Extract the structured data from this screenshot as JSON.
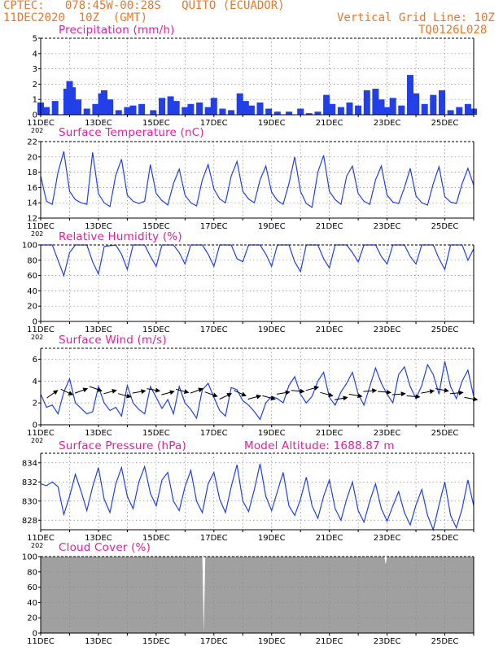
{
  "header": {
    "line1": "CPTEC:   078:45W-00:28S   QUITO (ECUADOR)",
    "line2": "11DEC2020  10Z  (GMT)",
    "grid_note": "Vertical Grid Line: 10Z",
    "code": "TQ0126L028"
  },
  "colors": {
    "header": "#e8792b",
    "title": "#e0209a",
    "series": "#2340e8",
    "cloud": "#a0a0a0",
    "arrow": "#000000"
  },
  "x_ticks": [
    "11DEC",
    "13DEC",
    "15DEC",
    "17DEC",
    "19DEC",
    "21DEC",
    "23DEC",
    "25DEC"
  ],
  "year_label": "202",
  "panels": {
    "precip": {
      "title": "Precipitation (mm/h)"
    },
    "temp": {
      "title": "Surface Temperature (nC)"
    },
    "rh": {
      "title": "Relative Humidity (%)"
    },
    "wind": {
      "title": "Surface Wind (m/s)"
    },
    "pressure": {
      "title": "Surface Pressure (hPa)",
      "altitude": "Model Altitude: 1688.87 m"
    },
    "cloud": {
      "title": "Cloud Cover (%)"
    }
  },
  "chart_data": [
    {
      "type": "bar",
      "title": "Precipitation (mm/h)",
      "x_range_days": [
        11,
        26
      ],
      "ylim": [
        0,
        5
      ],
      "yticks": [
        0,
        1,
        2,
        3,
        4,
        5
      ],
      "x": [
        11.0,
        11.2,
        11.5,
        11.9,
        12.0,
        12.1,
        12.3,
        12.6,
        12.9,
        13.1,
        13.2,
        13.4,
        13.7,
        14.0,
        14.2,
        14.5,
        14.9,
        15.2,
        15.5,
        15.7,
        16.0,
        16.2,
        16.5,
        16.8,
        17.0,
        17.3,
        17.6,
        17.9,
        18.1,
        18.3,
        18.6,
        18.9,
        19.2,
        19.6,
        20.0,
        20.3,
        20.6,
        20.9,
        21.1,
        21.4,
        21.7,
        22.0,
        22.3,
        22.6,
        22.8,
        23.0,
        23.2,
        23.5,
        23.8,
        24.0,
        24.3,
        24.6,
        24.9,
        25.2,
        25.5,
        25.8,
        26.0
      ],
      "values": [
        0.8,
        0.5,
        0.9,
        1.7,
        2.2,
        1.8,
        1.0,
        0.4,
        0.7,
        1.4,
        1.6,
        1.0,
        0.3,
        0.5,
        0.6,
        0.7,
        0.3,
        1.1,
        1.2,
        0.9,
        0.5,
        0.7,
        0.8,
        0.5,
        1.1,
        0.4,
        0.3,
        1.4,
        0.9,
        0.6,
        0.8,
        0.4,
        0.2,
        0.2,
        0.4,
        0.1,
        0.2,
        1.3,
        0.7,
        0.5,
        0.8,
        0.6,
        1.6,
        1.7,
        1.0,
        0.5,
        1.1,
        0.6,
        2.6,
        1.4,
        0.7,
        1.3,
        1.6,
        0.3,
        0.5,
        0.7,
        0.4
      ],
      "ylabel": ""
    },
    {
      "type": "line",
      "title": "Surface Temperature (nC)",
      "ylim": [
        12,
        22
      ],
      "yticks": [
        12,
        14,
        16,
        18,
        20,
        22
      ],
      "x": [
        11.0,
        11.2,
        11.4,
        11.6,
        11.8,
        12.0,
        12.2,
        12.4,
        12.6,
        12.8,
        13.0,
        13.2,
        13.4,
        13.6,
        13.8,
        14.0,
        14.2,
        14.4,
        14.6,
        14.8,
        15.0,
        15.2,
        15.4,
        15.6,
        15.8,
        16.0,
        16.2,
        16.4,
        16.6,
        16.8,
        17.0,
        17.2,
        17.4,
        17.6,
        17.8,
        18.0,
        18.2,
        18.4,
        18.6,
        18.8,
        19.0,
        19.2,
        19.4,
        19.6,
        19.8,
        20.0,
        20.2,
        20.4,
        20.6,
        20.8,
        21.0,
        21.2,
        21.4,
        21.6,
        21.8,
        22.0,
        22.2,
        22.4,
        22.6,
        22.8,
        23.0,
        23.2,
        23.4,
        23.6,
        23.8,
        24.0,
        24.2,
        24.4,
        24.6,
        24.8,
        25.0,
        25.2,
        25.4,
        25.6,
        25.8,
        26.0
      ],
      "values": [
        17.5,
        14.2,
        13.8,
        18.0,
        20.7,
        15.5,
        14.4,
        14.0,
        13.8,
        20.6,
        15.2,
        14.0,
        13.5,
        17.6,
        19.7,
        15.0,
        14.2,
        13.9,
        14.2,
        19.0,
        15.2,
        14.3,
        13.7,
        16.5,
        18.4,
        15.0,
        14.0,
        13.6,
        17.0,
        19.0,
        15.8,
        14.5,
        14.0,
        17.5,
        19.4,
        15.5,
        14.5,
        14.0,
        17.0,
        18.8,
        15.4,
        14.3,
        13.8,
        16.5,
        20.0,
        15.5,
        13.9,
        13.4,
        18.0,
        20.2,
        15.5,
        14.4,
        13.8,
        17.5,
        18.8,
        15.2,
        14.2,
        13.8,
        17.0,
        18.8,
        15.0,
        14.1,
        13.9,
        16.0,
        18.5,
        14.9,
        14.0,
        13.7,
        16.5,
        18.7,
        14.8,
        14.1,
        13.9,
        16.5,
        18.5,
        16.3
      ]
    },
    {
      "type": "line",
      "title": "Relative Humidity (%)",
      "ylim": [
        0,
        100
      ],
      "yticks": [
        0,
        20,
        40,
        60,
        80,
        100
      ],
      "x": [
        11.0,
        11.4,
        11.6,
        11.8,
        12.0,
        12.2,
        12.6,
        12.8,
        13.0,
        13.2,
        13.6,
        13.8,
        14.0,
        14.2,
        14.6,
        14.8,
        15.0,
        15.2,
        15.6,
        15.8,
        16.0,
        16.2,
        16.6,
        16.8,
        17.0,
        17.2,
        17.6,
        17.8,
        18.0,
        18.2,
        18.6,
        18.8,
        19.0,
        19.2,
        19.6,
        19.8,
        20.0,
        20.2,
        20.6,
        20.8,
        21.0,
        21.2,
        21.6,
        21.8,
        22.0,
        22.2,
        22.6,
        22.8,
        23.0,
        23.2,
        23.6,
        23.8,
        24.0,
        24.2,
        24.6,
        24.8,
        25.0,
        25.2,
        25.6,
        25.8,
        26.0
      ],
      "values": [
        100,
        100,
        80,
        60,
        90,
        100,
        100,
        78,
        62,
        98,
        100,
        88,
        68,
        100,
        100,
        85,
        72,
        100,
        100,
        90,
        75,
        100,
        100,
        88,
        72,
        100,
        100,
        82,
        78,
        100,
        100,
        88,
        72,
        100,
        100,
        78,
        65,
        100,
        100,
        82,
        70,
        100,
        100,
        90,
        78,
        100,
        100,
        85,
        75,
        100,
        100,
        85,
        75,
        100,
        100,
        82,
        68,
        100,
        100,
        80,
        95
      ]
    },
    {
      "type": "line",
      "title": "Surface Wind (m/s)",
      "ylim": [
        0,
        7
      ],
      "yticks": [
        0,
        2,
        4,
        6
      ],
      "x": [
        11.0,
        11.2,
        11.4,
        11.6,
        11.8,
        12.0,
        12.2,
        12.4,
        12.6,
        12.8,
        13.0,
        13.2,
        13.4,
        13.6,
        13.8,
        14.0,
        14.2,
        14.4,
        14.6,
        14.8,
        15.0,
        15.2,
        15.4,
        15.6,
        15.8,
        16.0,
        16.2,
        16.4,
        16.6,
        16.8,
        17.0,
        17.2,
        17.4,
        17.6,
        17.8,
        18.0,
        18.2,
        18.4,
        18.6,
        18.8,
        19.0,
        19.2,
        19.4,
        19.6,
        19.8,
        20.0,
        20.2,
        20.4,
        20.6,
        20.8,
        21.0,
        21.2,
        21.4,
        21.6,
        21.8,
        22.0,
        22.2,
        22.4,
        22.6,
        22.8,
        23.0,
        23.2,
        23.4,
        23.6,
        23.8,
        24.0,
        24.2,
        24.4,
        24.6,
        24.8,
        25.0,
        25.2,
        25.4,
        25.6,
        25.8,
        26.0
      ],
      "values": [
        2.8,
        1.6,
        1.8,
        1.0,
        3.0,
        4.2,
        2.0,
        1.5,
        1.0,
        1.2,
        3.5,
        2.0,
        1.3,
        1.6,
        0.8,
        3.6,
        2.0,
        1.4,
        1.0,
        3.5,
        2.5,
        1.5,
        2.3,
        1.0,
        3.5,
        2.0,
        1.4,
        0.6,
        3.2,
        3.8,
        2.5,
        1.3,
        0.8,
        3.4,
        3.2,
        2.2,
        1.8,
        1.2,
        0.5,
        2.0,
        2.6,
        2.4,
        2.0,
        3.6,
        4.4,
        2.8,
        2.0,
        2.6,
        4.0,
        4.8,
        2.5,
        1.8,
        3.0,
        3.8,
        4.8,
        2.8,
        1.8,
        3.5,
        5.2,
        3.8,
        2.8,
        2.0,
        4.6,
        5.3,
        3.5,
        2.4,
        3.6,
        5.5,
        4.6,
        2.8,
        5.8,
        3.5,
        2.4,
        4.0,
        5.0,
        2.6
      ],
      "arrows_x": [
        11.4,
        11.9,
        12.4,
        12.9,
        13.4,
        13.9,
        14.4,
        14.9,
        15.4,
        15.9,
        16.4,
        16.9,
        17.4,
        17.9,
        18.4,
        18.9,
        19.4,
        19.9,
        20.4,
        20.9,
        21.4,
        21.9,
        22.4,
        22.9,
        23.4,
        23.9,
        24.4,
        24.9,
        25.4,
        25.9
      ],
      "arrows_dir_deg": [
        35,
        -25,
        20,
        -20,
        15,
        -15,
        10,
        -10,
        15,
        -15,
        20,
        -20,
        25,
        -25,
        15,
        -15,
        10,
        -5,
        15,
        -15,
        10,
        -10,
        5,
        -5,
        5,
        -5,
        10,
        -10,
        5,
        -10
      ],
      "arrows_speed": [
        2.8,
        3.0,
        3.1,
        3.3,
        3.0,
        2.7,
        3.0,
        3.2,
        2.9,
        3.1,
        3.1,
        2.8,
        2.6,
        2.9,
        2.5,
        2.5,
        2.9,
        3.1,
        3.3,
        2.8,
        2.4,
        2.7,
        3.1,
        3.0,
        2.8,
        2.6,
        3.0,
        3.2,
        2.9,
        2.4
      ]
    },
    {
      "type": "line",
      "title": "Surface Pressure (hPa)",
      "ylim": [
        827,
        835
      ],
      "yticks": [
        828,
        830,
        832,
        834
      ],
      "x": [
        11.0,
        11.2,
        11.4,
        11.6,
        11.8,
        12.0,
        12.2,
        12.4,
        12.6,
        12.8,
        13.0,
        13.2,
        13.4,
        13.6,
        13.8,
        14.0,
        14.2,
        14.4,
        14.6,
        14.8,
        15.0,
        15.2,
        15.4,
        15.6,
        15.8,
        16.0,
        16.2,
        16.4,
        16.6,
        16.8,
        17.0,
        17.2,
        17.4,
        17.6,
        17.8,
        18.0,
        18.2,
        18.4,
        18.6,
        18.8,
        19.0,
        19.2,
        19.4,
        19.6,
        19.8,
        20.0,
        20.2,
        20.4,
        20.6,
        20.8,
        21.0,
        21.2,
        21.4,
        21.6,
        21.8,
        22.0,
        22.2,
        22.4,
        22.6,
        22.8,
        23.0,
        23.2,
        23.4,
        23.6,
        23.8,
        24.0,
        24.2,
        24.4,
        24.6,
        24.8,
        25.0,
        25.2,
        25.4,
        25.6,
        25.8,
        26.0
      ],
      "values": [
        831.8,
        831.6,
        832.0,
        831.5,
        828.6,
        830.5,
        832.8,
        831.0,
        829.0,
        831.5,
        833.5,
        830.2,
        828.8,
        831.8,
        833.5,
        830.5,
        829.2,
        832.0,
        833.6,
        830.8,
        829.5,
        832.2,
        833.0,
        830.0,
        829.0,
        831.5,
        833.2,
        830.0,
        828.8,
        831.8,
        833.0,
        830.2,
        828.8,
        831.5,
        833.8,
        830.0,
        828.9,
        831.2,
        833.9,
        830.5,
        829.0,
        831.0,
        833.0,
        829.5,
        828.5,
        830.2,
        832.5,
        829.5,
        828.2,
        830.5,
        832.2,
        829.2,
        828.0,
        830.2,
        832.0,
        829.0,
        827.8,
        830.0,
        831.8,
        829.2,
        827.9,
        829.5,
        831.0,
        828.8,
        827.5,
        829.6,
        831.2,
        828.5,
        827.0,
        829.6,
        832.0,
        828.5,
        827.2,
        829.2,
        832.2,
        829.5
      ]
    },
    {
      "type": "area",
      "title": "Cloud Cover (%)",
      "ylim": [
        0,
        100
      ],
      "yticks": [
        0,
        20,
        40,
        60,
        80,
        100
      ],
      "x": [
        11.0,
        16.6,
        16.65,
        16.7,
        22.9,
        22.95,
        23.0,
        26.0
      ],
      "values": [
        100,
        100,
        0,
        100,
        100,
        90,
        100,
        100
      ]
    }
  ]
}
